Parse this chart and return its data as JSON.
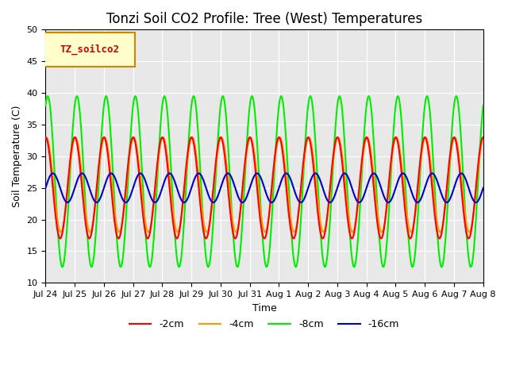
{
  "title": "Tonzi Soil CO2 Profile: Tree (West) Temperatures",
  "ylabel": "Soil Temperature (C)",
  "xlabel": "Time",
  "ylim": [
    10,
    50
  ],
  "legend_label": "TZ_soilco2",
  "series_labels": [
    "-2cm",
    "-4cm",
    "-8cm",
    "-16cm"
  ],
  "series_colors": [
    "#ff0000",
    "#ff9900",
    "#00ee00",
    "#0000cc"
  ],
  "bg_color": "#e8e8e8",
  "x_tick_labels": [
    "Jul 24",
    "Jul 25",
    "Jul 26",
    "Jul 27",
    "Jul 28",
    "Jul 29",
    "Jul 30",
    "Jul 31",
    "Aug 1",
    "Aug 2",
    "Aug 3",
    "Aug 4",
    "Aug 5",
    "Aug 6",
    "Aug 7",
    "Aug 8"
  ],
  "y_ticks": [
    10,
    15,
    20,
    25,
    30,
    35,
    40,
    45,
    50
  ],
  "title_fontsize": 12,
  "axis_fontsize": 9,
  "tick_fontsize": 8,
  "legend_fontsize": 9,
  "line_width": 1.5
}
